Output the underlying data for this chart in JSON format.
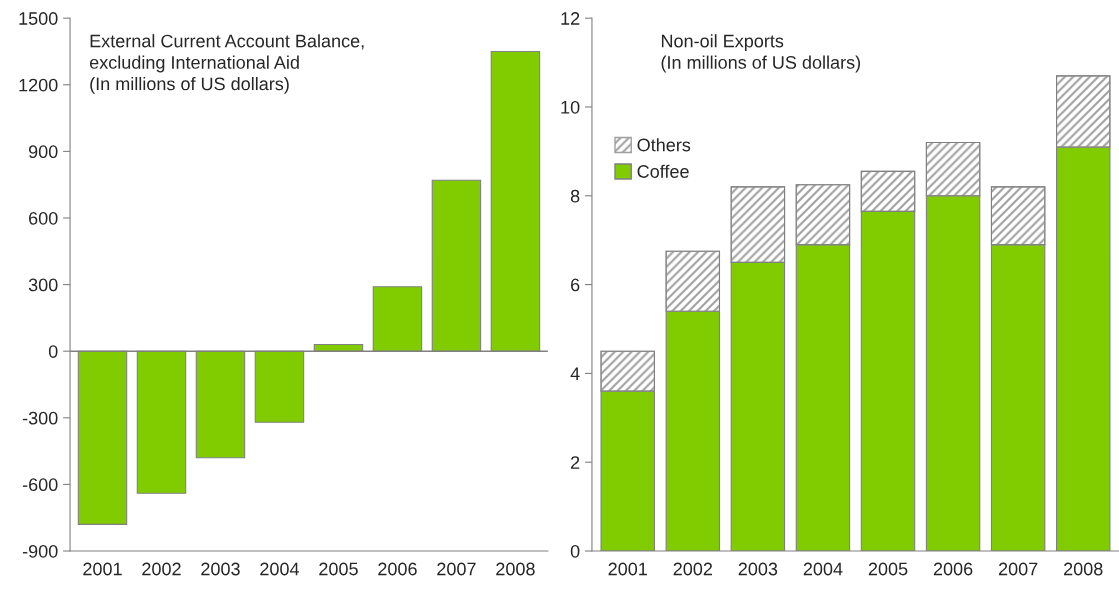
{
  "chart_data": [
    {
      "type": "bar",
      "title": "External Current Account Balance,\nexcluding International Aid\n(In millions of US dollars)",
      "categories": [
        "2001",
        "2002",
        "2003",
        "2004",
        "2005",
        "2006",
        "2007",
        "2008"
      ],
      "values": [
        -780,
        -640,
        -480,
        -320,
        30,
        290,
        770,
        1350
      ],
      "color": "#80cc00",
      "ylim": [
        -900,
        1500
      ],
      "yticks": [
        -900,
        -600,
        -300,
        0,
        300,
        600,
        900,
        1200,
        1500
      ],
      "ref_lines": [
        {
          "axis": "y",
          "value": 0,
          "label": null,
          "color": "#808080"
        }
      ],
      "grid": false,
      "legend": false
    },
    {
      "type": "bar",
      "title": "Non-oil Exports\n(In millions of US dollars)",
      "categories": [
        "2001",
        "2002",
        "2003",
        "2004",
        "2005",
        "2006",
        "2007",
        "2008"
      ],
      "stacked": true,
      "series": [
        {
          "name": "Coffee",
          "color": "#80cc00",
          "values": [
            3.6,
            5.4,
            6.5,
            6.9,
            7.65,
            8.0,
            6.9,
            9.1
          ]
        },
        {
          "name": "Others",
          "color": "#a0a0a0",
          "values": [
            0.9,
            1.35,
            1.7,
            1.35,
            0.9,
            1.2,
            1.3,
            1.6
          ]
        }
      ],
      "ylim": [
        0,
        12
      ],
      "yticks": [
        0,
        2,
        4,
        6,
        8,
        10,
        12
      ],
      "grid": false,
      "legend": "top left"
    }
  ]
}
